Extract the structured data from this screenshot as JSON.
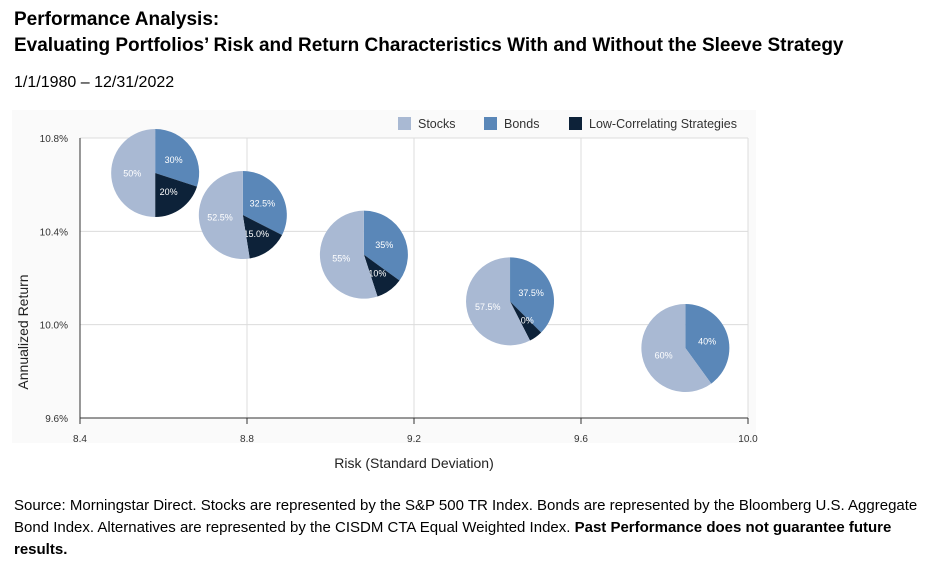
{
  "header": {
    "title_line1": "Performance Analysis:",
    "title_line2": "Evaluating Portfolios’ Risk and Return Characteristics With and Without the Sleeve Strategy",
    "date_range": "1/1/1980 – 12/31/2022"
  },
  "footer": {
    "source_text": "Source: Morningstar Direct. Stocks are represented by the S&P 500 TR Index. Bonds are represented by the Bloomberg U.S. Aggregate Bond Index. Alternatives are represented by the CISDM CTA Equal Weighted Index. ",
    "disclaimer": "Past Performance does not guarantee future results."
  },
  "chart_data": {
    "type": "scatter",
    "title": "",
    "xlabel": "Risk (Standard Deviation)",
    "ylabel": "Annualized Return",
    "xlim": [
      8.4,
      10.0
    ],
    "ylim": [
      9.6,
      10.8
    ],
    "x_ticks": [
      "8.4",
      "8.8",
      "9.2",
      "9.6",
      "10.0"
    ],
    "y_ticks": [
      "10.8%",
      "10.4%",
      "10.0%",
      "9.6%"
    ],
    "y_tick_values": [
      10.8,
      10.4,
      10.0,
      9.6
    ],
    "x_tick_values": [
      8.4,
      8.8,
      9.2,
      9.6,
      10.0
    ],
    "grid": true,
    "legend_position": "top-right",
    "series": [
      {
        "name": "Stocks",
        "color": "#a9b9d3"
      },
      {
        "name": "Bonds",
        "color": "#5a87b8"
      },
      {
        "name": "Low-Correlating Strategies",
        "color": "#0d2239"
      }
    ],
    "points": [
      {
        "x": 8.58,
        "y": 10.65,
        "allocation": [
          50,
          30,
          20
        ],
        "labels": [
          "50%",
          "30%",
          "20%"
        ]
      },
      {
        "x": 8.79,
        "y": 10.47,
        "allocation": [
          52.5,
          32.5,
          15.0
        ],
        "labels": [
          "52.5%",
          "32.5%",
          "15.0%"
        ]
      },
      {
        "x": 9.08,
        "y": 10.3,
        "allocation": [
          55,
          35,
          10
        ],
        "labels": [
          "55%",
          "35%",
          "10%"
        ]
      },
      {
        "x": 9.43,
        "y": 10.1,
        "allocation": [
          57.5,
          37.5,
          5.0
        ],
        "labels": [
          "57.5%",
          "37.5%",
          "5.0%"
        ]
      },
      {
        "x": 9.85,
        "y": 9.9,
        "allocation": [
          60,
          40,
          0
        ],
        "labels": [
          "60%",
          "40%",
          ""
        ]
      }
    ]
  }
}
